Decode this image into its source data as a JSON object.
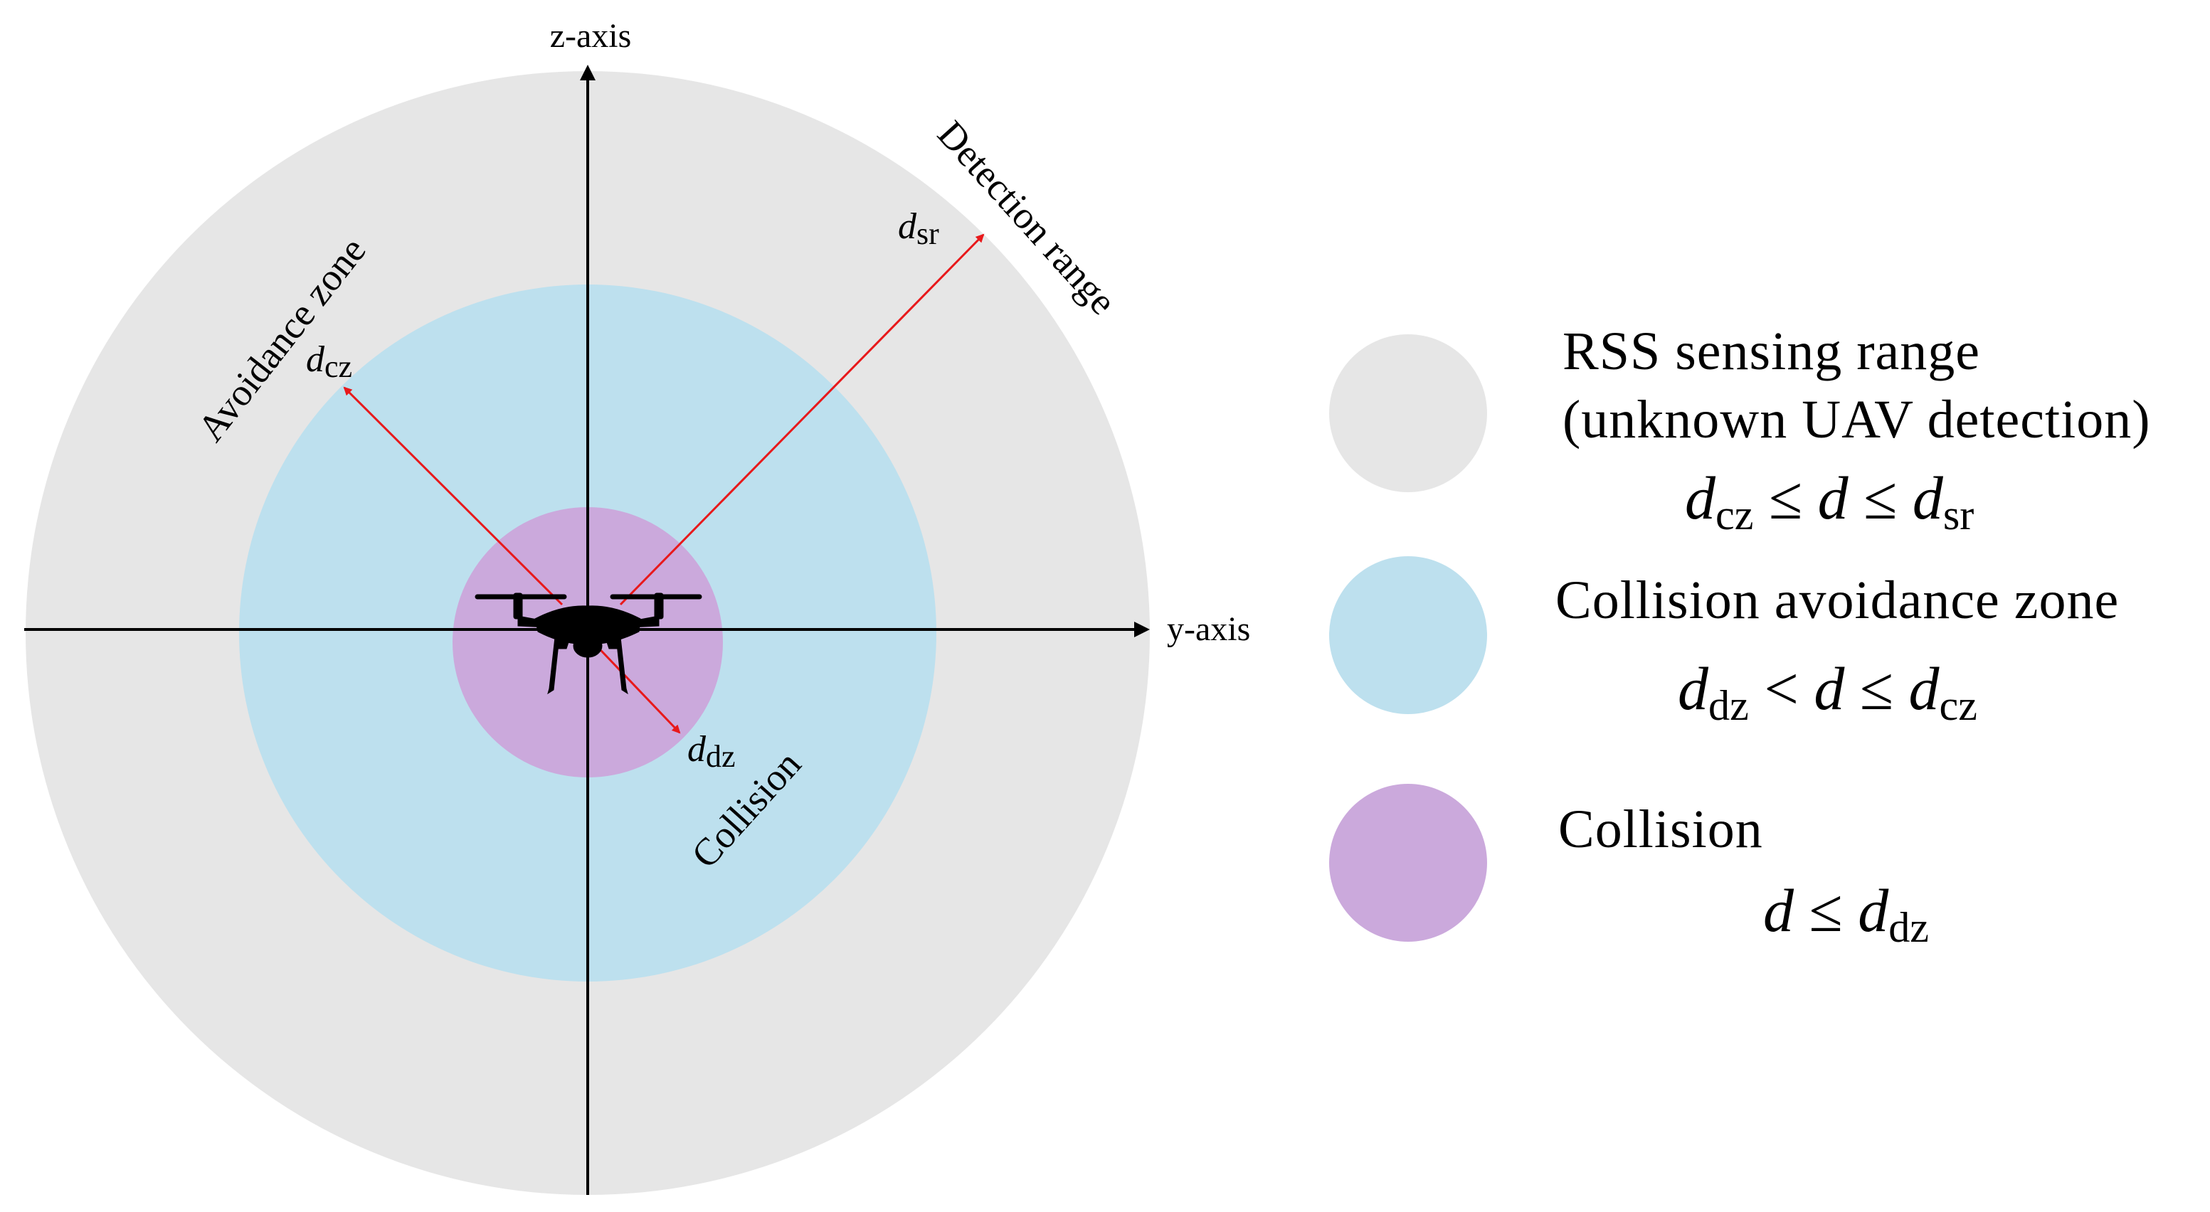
{
  "diagram": {
    "axes": {
      "z_label": "z-axis",
      "y_label": "y-axis"
    },
    "zones": [
      {
        "id": "sensing",
        "color": "#e6e6e6",
        "arc_label": "Detection range",
        "radius_symbol": "d",
        "radius_sub": "sr"
      },
      {
        "id": "avoidance",
        "color": "#bde0ee",
        "arc_label": "Avoidance zone",
        "radius_symbol": "d",
        "radius_sub": "cz"
      },
      {
        "id": "collision",
        "color": "#cba9dc",
        "arc_label": "Collision",
        "radius_symbol": "d",
        "radius_sub": "dz"
      }
    ],
    "arrow_color": "#e8191b",
    "center_object_icon": "drone-icon"
  },
  "legend": {
    "items": [
      {
        "swatch_color": "#e6e6e6",
        "line1": "RSS sensing range",
        "line2": "(unknown UAV detection)",
        "eq": {
          "a": "d",
          "a_sub": "cz",
          "op1": "≤",
          "b": "d",
          "op2": "≤",
          "c": "d",
          "c_sub": "sr"
        }
      },
      {
        "swatch_color": "#bde0ee",
        "line1": "Collision avoidance zone",
        "eq": {
          "a": "d",
          "a_sub": "dz",
          "op1": "<",
          "b": "d",
          "op2": "≤",
          "c": "d",
          "c_sub": "cz"
        }
      },
      {
        "swatch_color": "#cba9dc",
        "line1": "Collision",
        "eq": {
          "a": "d",
          "op1": "≤",
          "b": "d",
          "b_sub": "dz"
        }
      }
    ]
  }
}
